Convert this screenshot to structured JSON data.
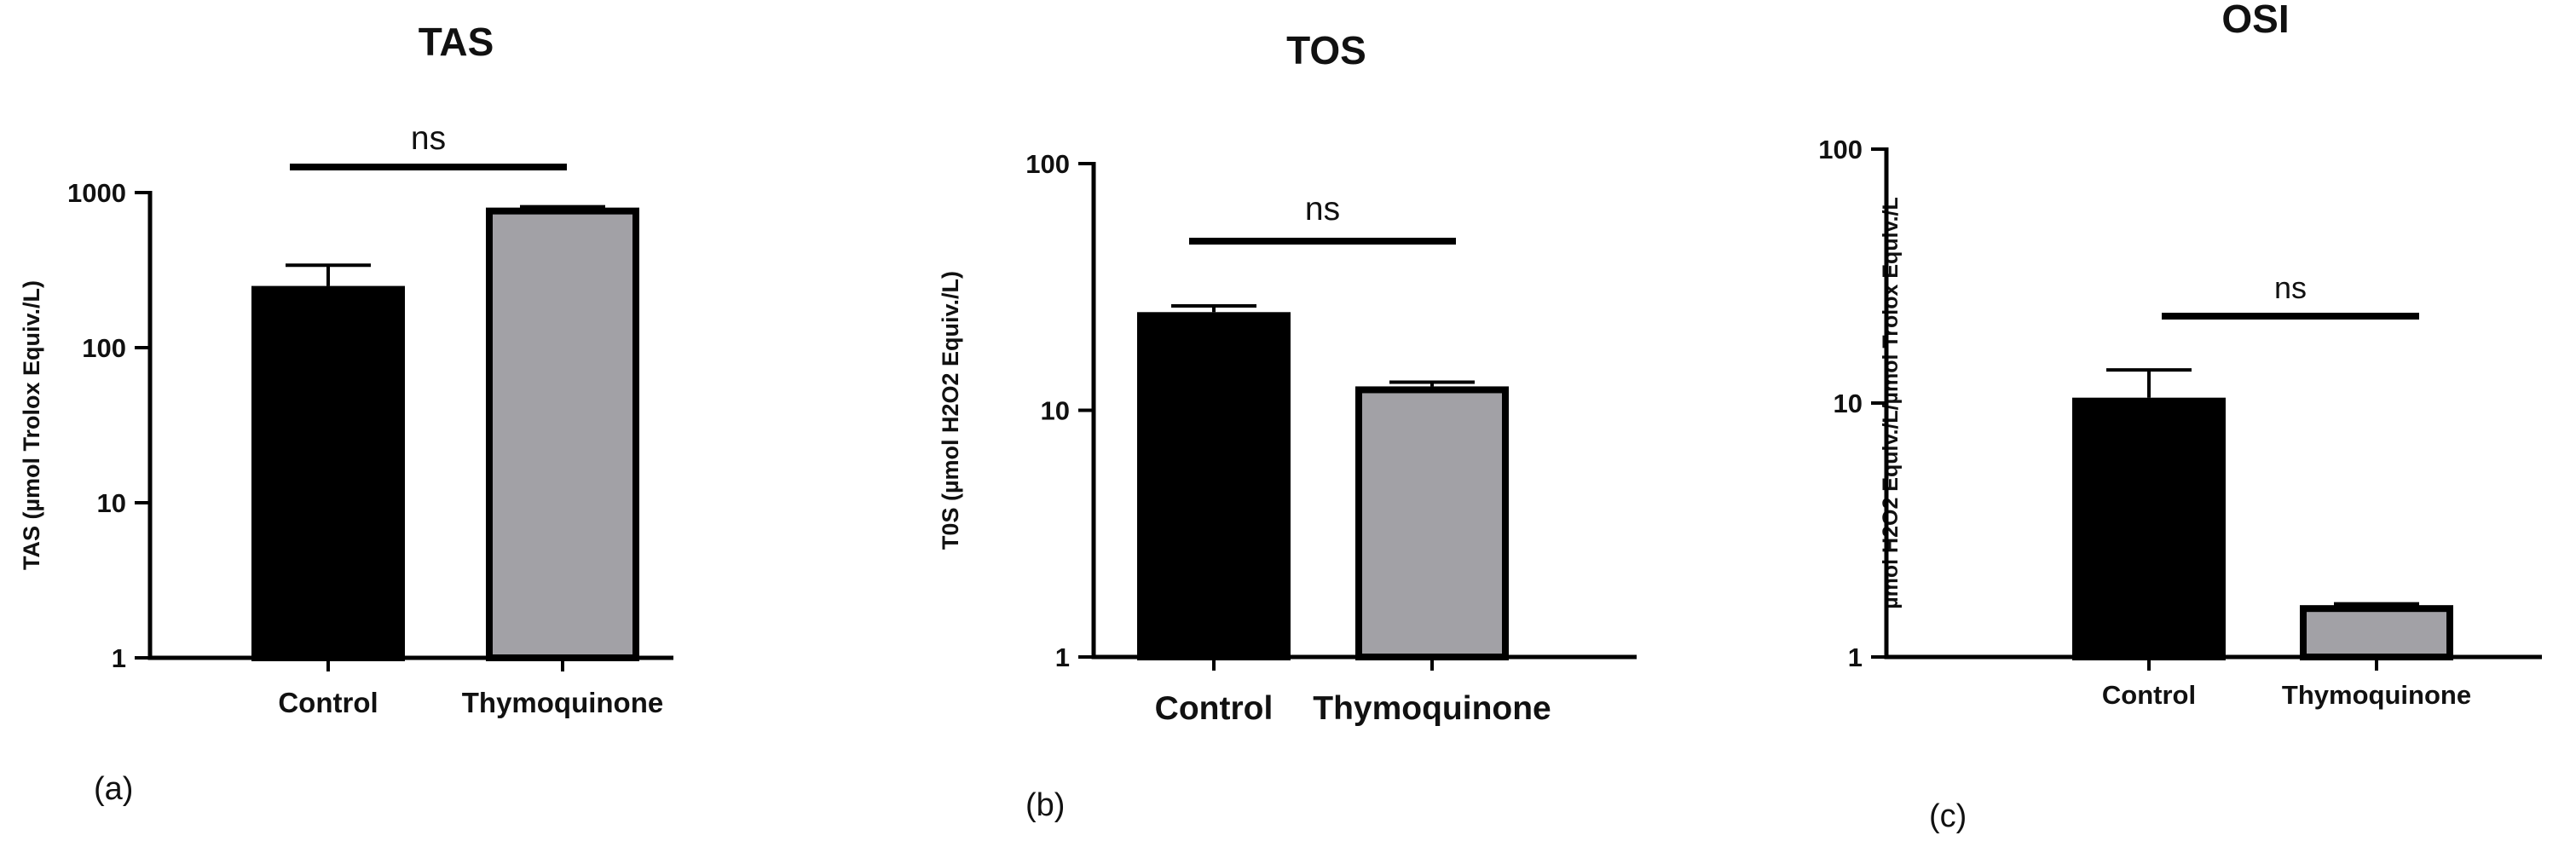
{
  "chart_data": [
    {
      "type": "bar",
      "title": "TAS",
      "panel_label": "(a)",
      "ylabel": "TAS (µmol Trolox Equiv./L)",
      "yscale": "log",
      "ylim": [
        1,
        1000
      ],
      "yticks": [
        "1",
        "10",
        "100",
        "1000"
      ],
      "categories": [
        "Control",
        "Thymoquinone"
      ],
      "values": [
        250,
        800
      ],
      "errors_upper": [
        340,
        810
      ],
      "bar_colors": [
        "#000000",
        "#a2a1a6"
      ],
      "significance": "ns"
    },
    {
      "type": "bar",
      "title": "TOS",
      "panel_label": "(b)",
      "ylabel": "T0S  (µmol H2O2 Equiv./L)",
      "yscale": "log",
      "ylim": [
        1,
        100
      ],
      "yticks": [
        "1",
        "10",
        "100"
      ],
      "categories": [
        "Control",
        "Thymoquinone"
      ],
      "values": [
        25,
        12.5
      ],
      "errors_upper": [
        26.5,
        13
      ],
      "bar_colors": [
        "#000000",
        "#a2a1a6"
      ],
      "significance": "ns"
    },
    {
      "type": "bar",
      "title": "OSI",
      "panel_label": "(c)",
      "ylabel": "µmol H2O2 Equiv./L/µmol Trolox Equiv./L",
      "yscale": "log",
      "ylim": [
        1,
        100
      ],
      "yticks": [
        "1",
        "10",
        "100"
      ],
      "categories": [
        "Control",
        "Thymoquinone"
      ],
      "values": [
        10.5,
        1.6
      ],
      "errors_upper": [
        13.5,
        1.62
      ],
      "bar_colors": [
        "#000000",
        "#a2a1a6"
      ],
      "significance": "ns"
    }
  ]
}
